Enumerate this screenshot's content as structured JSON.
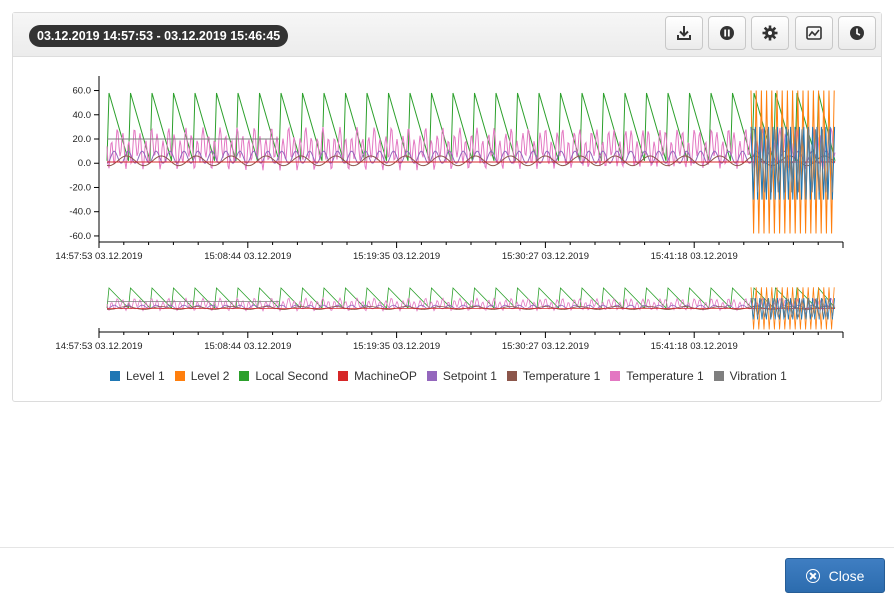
{
  "header": {
    "time_range": "03.12.2019 14:57:53 - 03.12.2019 15:46:45"
  },
  "toolbar": {
    "buttons": [
      {
        "icon": "download-icon"
      },
      {
        "icon": "pause-icon"
      },
      {
        "icon": "gear-icon"
      },
      {
        "icon": "chart-area-icon"
      },
      {
        "icon": "clock-icon"
      }
    ]
  },
  "chart_data": {
    "type": "line",
    "ylim": [
      -65,
      72
    ],
    "y_ticks": [
      "60.0",
      "40.0",
      "20.0",
      "0.0",
      "-20.0",
      "-40.0",
      "-60.0"
    ],
    "x_ticks": [
      "14:57:53 03.12.2019",
      "15:08:44 03.12.2019",
      "15:19:35 03.12.2019",
      "15:30:27 03.12.2019",
      "15:41:18 03.12.2019"
    ],
    "series": [
      {
        "name": "Level 1",
        "color": "#1f77b4"
      },
      {
        "name": "Level 2",
        "color": "#ff7f0e"
      },
      {
        "name": "Local Second",
        "color": "#2ca02c"
      },
      {
        "name": "MachineOP",
        "color": "#d62728"
      },
      {
        "name": "Setpoint 1",
        "color": "#9467bd"
      },
      {
        "name": "Temperature 1",
        "color": "#8c564b"
      },
      {
        "name": "Temperature 1",
        "color": "#e377c2"
      },
      {
        "name": "Vibration 1",
        "color": "#7f7f7f"
      }
    ],
    "legend_position": "bottom"
  },
  "footer": {
    "close_label": "Close"
  }
}
